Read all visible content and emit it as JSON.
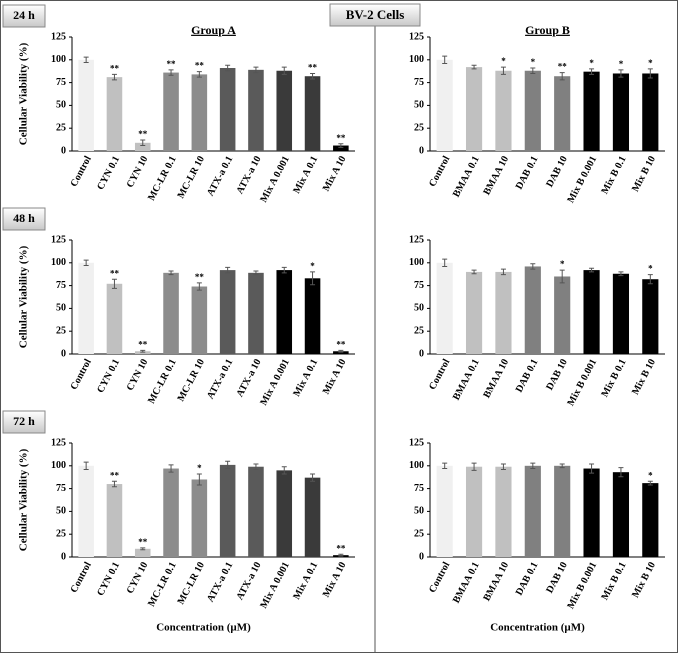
{
  "header": {
    "title": "BV-2 Cells"
  },
  "chart_data": [
    {
      "type": "bar",
      "row_label": "24 h",
      "title": "Group A",
      "y_label": "Cellular Viability (%)",
      "categories": [
        "Control",
        "CYN 0.1",
        "CYN 10",
        "MC-LR 0.1",
        "MC-LR 10",
        "ATX-a 0.1",
        "ATX-a 10",
        "Mix A 0.001",
        "Mix A 0.1",
        "Mix A 10"
      ],
      "values": [
        100,
        81,
        9,
        86,
        84,
        91,
        89,
        88,
        82,
        6
      ],
      "errors": [
        3,
        3,
        3,
        3,
        3,
        3,
        3,
        4,
        3,
        2
      ],
      "annotations": [
        null,
        "**",
        "**",
        "**",
        "**",
        null,
        null,
        null,
        "**",
        "**"
      ],
      "colors": [
        "#f0f0f0",
        "#c0c0c0",
        "#c0c0c0",
        "#8c8c8c",
        "#8c8c8c",
        "#5a5a5a",
        "#5a5a5a",
        "#3a3a3a",
        "#3a3a3a",
        "#000000"
      ],
      "ylim": [
        0,
        125
      ],
      "yticks": [
        0,
        25,
        50,
        75,
        100,
        125
      ]
    },
    {
      "type": "bar",
      "title": "Group B",
      "categories": [
        "Control",
        "BMAA 0.1",
        "BMAA 10",
        "DAB 0.1",
        "DAB 10",
        "Mix B 0.001",
        "Mix B 0.1",
        "Mix B 10"
      ],
      "values": [
        100,
        92,
        88,
        88,
        82,
        87,
        85,
        85
      ],
      "errors": [
        4,
        2,
        4,
        3,
        4,
        3,
        4,
        5
      ],
      "annotations": [
        null,
        null,
        "*",
        "*",
        "**",
        "*",
        "*",
        "*"
      ],
      "colors": [
        "#f0f0f0",
        "#c0c0c0",
        "#c0c0c0",
        "#808080",
        "#808080",
        "#000000",
        "#000000",
        "#000000"
      ],
      "ylim": [
        0,
        125
      ],
      "yticks": [
        0,
        25,
        50,
        75,
        100,
        125
      ]
    },
    {
      "type": "bar",
      "row_label": "48 h",
      "y_label": "Cellular Viability (%)",
      "categories": [
        "Control",
        "CYN 0.1",
        "CYN 10",
        "MC-LR 0.1",
        "MC-LR 10",
        "ATX-a 0.1",
        "ATX-a 10",
        "Mix A 0.001",
        "Mix A 0.1",
        "Mix A 10"
      ],
      "values": [
        100,
        77,
        3,
        89,
        74,
        92,
        89,
        92,
        83,
        3
      ],
      "errors": [
        3,
        5,
        1,
        2,
        4,
        3,
        2,
        3,
        7,
        1
      ],
      "annotations": [
        null,
        "**",
        "**",
        null,
        "**",
        null,
        null,
        null,
        "*",
        "**"
      ],
      "colors": [
        "#f0f0f0",
        "#c0c0c0",
        "#c0c0c0",
        "#8c8c8c",
        "#8c8c8c",
        "#5a5a5a",
        "#5a5a5a",
        "#000000",
        "#000000",
        "#000000"
      ],
      "ylim": [
        0,
        125
      ],
      "yticks": [
        0,
        25,
        50,
        75,
        100,
        125
      ]
    },
    {
      "type": "bar",
      "categories": [
        "Control",
        "BMAA 0.1",
        "BMAA 10",
        "DAB 0.1",
        "DAB 10",
        "Mix B 0.001",
        "Mix B 0.1",
        "Mix B 10"
      ],
      "values": [
        100,
        90,
        90,
        96,
        85,
        92,
        88,
        82
      ],
      "errors": [
        4,
        2,
        3,
        3,
        7,
        2,
        2,
        5
      ],
      "annotations": [
        null,
        null,
        null,
        null,
        "*",
        null,
        null,
        "*"
      ],
      "colors": [
        "#f0f0f0",
        "#c0c0c0",
        "#c0c0c0",
        "#808080",
        "#808080",
        "#000000",
        "#000000",
        "#000000"
      ],
      "ylim": [
        0,
        125
      ],
      "yticks": [
        0,
        25,
        50,
        75,
        100,
        125
      ]
    },
    {
      "type": "bar",
      "row_label": "72 h",
      "y_label": "Cellular Viability (%)",
      "x_label": "Concentration (µM)",
      "categories": [
        "Control",
        "CYN 0.1",
        "CYN 10",
        "MC-LR 0.1",
        "MC-LR 10",
        "ATX-a 0.1",
        "ATX-a 10",
        "Mix A 0.001",
        "Mix A 0.1",
        "Mix A 10"
      ],
      "values": [
        100,
        80,
        9,
        97,
        85,
        101,
        99,
        95,
        87,
        2
      ],
      "errors": [
        4,
        3,
        1,
        4,
        6,
        4,
        3,
        4,
        4,
        1
      ],
      "annotations": [
        null,
        "**",
        "**",
        null,
        "*",
        null,
        null,
        null,
        null,
        "**"
      ],
      "colors": [
        "#f0f0f0",
        "#c0c0c0",
        "#c0c0c0",
        "#8c8c8c",
        "#8c8c8c",
        "#5a5a5a",
        "#5a5a5a",
        "#3a3a3a",
        "#3a3a3a",
        "#000000"
      ],
      "ylim": [
        0,
        125
      ],
      "yticks": [
        0,
        25,
        50,
        75,
        100,
        125
      ]
    },
    {
      "type": "bar",
      "x_label": "Concentration (µM)",
      "categories": [
        "Control",
        "BMAA 0.1",
        "BMAA 10",
        "DAB 0.1",
        "DAB 10",
        "Mix B 0.001",
        "Mix B 0.1",
        "Mix B 10"
      ],
      "values": [
        100,
        99,
        99,
        100,
        100,
        97,
        93,
        81
      ],
      "errors": [
        3,
        4,
        3,
        3,
        2,
        5,
        5,
        2
      ],
      "annotations": [
        null,
        null,
        null,
        null,
        null,
        null,
        null,
        "*"
      ],
      "colors": [
        "#f0f0f0",
        "#c0c0c0",
        "#c0c0c0",
        "#808080",
        "#808080",
        "#000000",
        "#000000",
        "#000000"
      ],
      "ylim": [
        0,
        125
      ],
      "yticks": [
        0,
        25,
        50,
        75,
        100,
        125
      ]
    }
  ]
}
